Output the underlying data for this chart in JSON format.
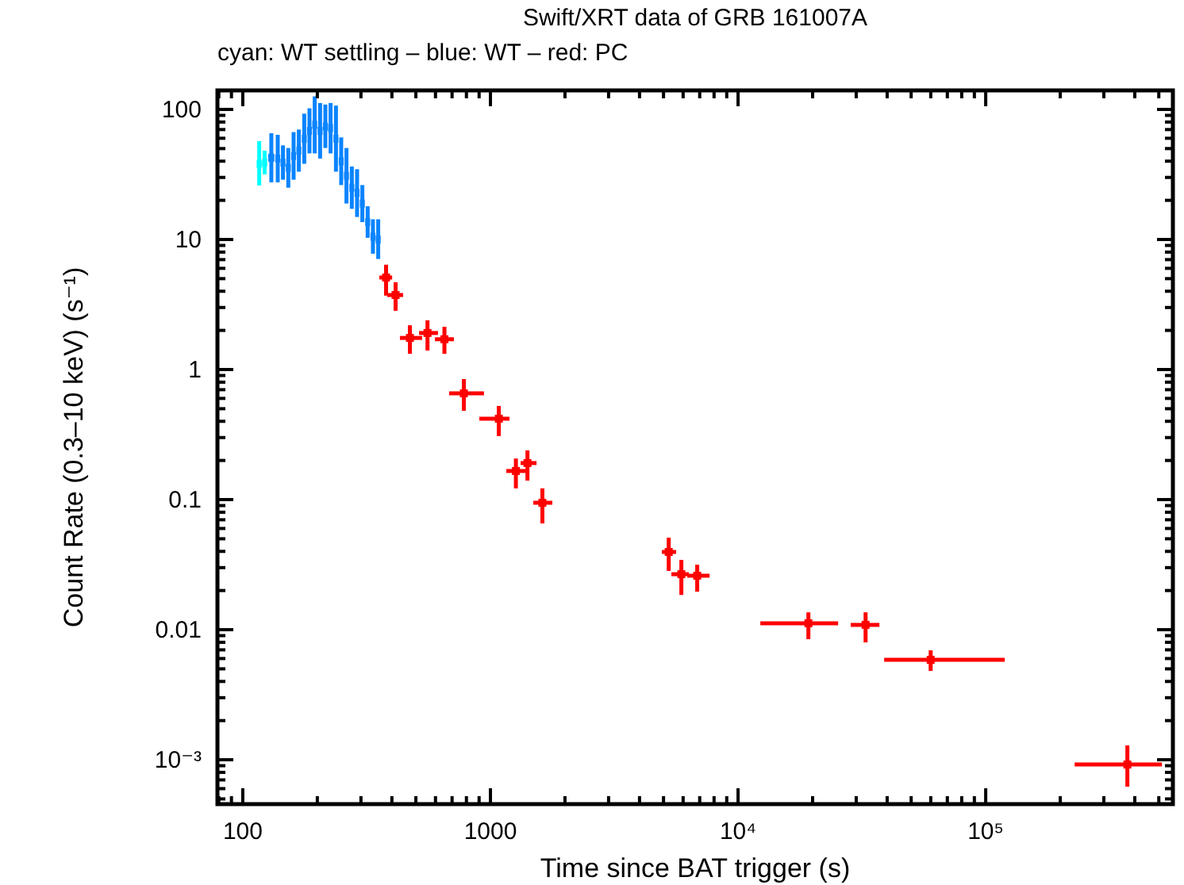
{
  "chart_data": {
    "type": "scatter",
    "title": "Swift/XRT data of GRB 161007A",
    "subtitle": "cyan: WT settling – blue: WT – red: PC",
    "xlabel": "Time since BAT trigger (s)",
    "ylabel": "Count Rate (0.3–10 keV) (s⁻¹)",
    "log": "xy",
    "grid": false,
    "xlim": [
      79,
      570000
    ],
    "ylim": [
      0.000456,
      140
    ],
    "xticks": [
      {
        "value": 80,
        "label": null
      },
      {
        "value": 90,
        "label": null
      },
      100,
      {
        "value": 200,
        "label": null
      },
      {
        "value": 300,
        "label": null
      },
      {
        "value": 400,
        "label": null
      },
      {
        "value": 500,
        "label": null
      },
      {
        "value": 600,
        "label": null
      },
      {
        "value": 700,
        "label": null
      },
      {
        "value": 800,
        "label": null
      },
      {
        "value": 900,
        "label": null
      },
      1000,
      {
        "value": 2000,
        "label": null
      },
      {
        "value": 3000,
        "label": null
      },
      {
        "value": 4000,
        "label": null
      },
      {
        "value": 5000,
        "label": null
      },
      {
        "value": 6000,
        "label": null
      },
      {
        "value": 7000,
        "label": null
      },
      {
        "value": 8000,
        "label": null
      },
      {
        "value": 9000,
        "label": null
      },
      {
        "value": 10000,
        "label": "10⁴"
      },
      {
        "value": 20000,
        "label": null
      },
      {
        "value": 30000,
        "label": null
      },
      {
        "value": 40000,
        "label": null
      },
      {
        "value": 50000,
        "label": null
      },
      {
        "value": 60000,
        "label": null
      },
      {
        "value": 70000,
        "label": null
      },
      {
        "value": 80000,
        "label": null
      },
      {
        "value": 90000,
        "label": null
      },
      {
        "value": 100000,
        "label": "10⁵"
      },
      {
        "value": 200000,
        "label": null
      },
      {
        "value": 300000,
        "label": null
      },
      {
        "value": 400000,
        "label": null
      },
      {
        "value": 500000,
        "label": null
      }
    ],
    "yticks": [
      {
        "value": 0.0005,
        "label": null
      },
      {
        "value": 0.0006,
        "label": null
      },
      {
        "value": 0.0007,
        "label": null
      },
      {
        "value": 0.0008,
        "label": null
      },
      {
        "value": 0.0009,
        "label": null
      },
      {
        "value": 0.001,
        "label": "10⁻³"
      },
      {
        "value": 0.002,
        "label": null
      },
      {
        "value": 0.003,
        "label": null
      },
      {
        "value": 0.004,
        "label": null
      },
      {
        "value": 0.005,
        "label": null
      },
      {
        "value": 0.006,
        "label": null
      },
      {
        "value": 0.007,
        "label": null
      },
      {
        "value": 0.008,
        "label": null
      },
      {
        "value": 0.009,
        "label": null
      },
      0.01,
      {
        "value": 0.02,
        "label": null
      },
      {
        "value": 0.03,
        "label": null
      },
      {
        "value": 0.04,
        "label": null
      },
      {
        "value": 0.05,
        "label": null
      },
      {
        "value": 0.06,
        "label": null
      },
      {
        "value": 0.07,
        "label": null
      },
      {
        "value": 0.08,
        "label": null
      },
      {
        "value": 0.09,
        "label": null
      },
      0.1,
      {
        "value": 0.2,
        "label": null
      },
      {
        "value": 0.3,
        "label": null
      },
      {
        "value": 0.4,
        "label": null
      },
      {
        "value": 0.5,
        "label": null
      },
      {
        "value": 0.6,
        "label": null
      },
      {
        "value": 0.7,
        "label": null
      },
      {
        "value": 0.8,
        "label": null
      },
      {
        "value": 0.9,
        "label": null
      },
      1,
      {
        "value": 2,
        "label": null
      },
      {
        "value": 3,
        "label": null
      },
      {
        "value": 4,
        "label": null
      },
      {
        "value": 5,
        "label": null
      },
      {
        "value": 6,
        "label": null
      },
      {
        "value": 7,
        "label": null
      },
      {
        "value": 8,
        "label": null
      },
      {
        "value": 9,
        "label": null
      },
      10,
      {
        "value": 20,
        "label": null
      },
      {
        "value": 30,
        "label": null
      },
      {
        "value": 40,
        "label": null
      },
      {
        "value": 50,
        "label": null
      },
      {
        "value": 60,
        "label": null
      },
      {
        "value": 70,
        "label": null
      },
      {
        "value": 80,
        "label": null
      },
      {
        "value": 90,
        "label": null
      },
      100
    ],
    "series": [
      {
        "color": "#00ffff",
        "x": [
          116.5,
          122.5
        ],
        "values": [
          38,
          39
        ],
        "errors": [
          [
            26,
            57
          ],
          [
            31.6,
            48.2
          ]
        ]
      },
      {
        "color": "#0a84ff",
        "x": [
          130.4,
          138.4,
          145.3,
          152.7,
          160.4,
          168.4,
          177.1,
          185.9,
          195.2,
          205.2,
          215.5,
          226.2,
          237.8,
          249.7,
          262.2,
          275.6,
          289.4,
          303.9,
          319.4,
          335.4,
          352.2
        ],
        "values": [
          42.5,
          41.9,
          39,
          35.6,
          43.9,
          48.2,
          59.5,
          68.4,
          76.2,
          68.4,
          74.1,
          71.8,
          59.5,
          39.9,
          30.9,
          25,
          22.8,
          18.9,
          13.6,
          10.5,
          10
        ],
        "errors": [
          [
            27.5,
            65.6
          ],
          [
            27.5,
            63.8
          ],
          [
            28.8,
            52.9
          ],
          [
            25,
            50.5
          ],
          [
            28.8,
            66.9
          ],
          [
            33.2,
            70
          ],
          [
            38.2,
            92.7
          ],
          [
            45.9,
            102
          ],
          [
            45.9,
            126
          ],
          [
            41.9,
            112
          ],
          [
            50.5,
            109
          ],
          [
            45.9,
            112
          ],
          [
            33.2,
            107
          ],
          [
            26.2,
            60.9
          ],
          [
            18.9,
            50.5
          ],
          [
            17.2,
            36.4
          ],
          [
            14.9,
            34.7
          ],
          [
            13.6,
            26.2
          ],
          [
            10.3,
            18
          ],
          [
            7.77,
            14.3
          ],
          [
            7.08,
            14.3
          ]
        ]
      },
      {
        "color": "#ff0000",
        "x": [
          379,
          414,
          473,
          557,
          652,
          781,
          1081,
          1267,
          1411,
          1621,
          5248,
          5902,
          6839,
          19230,
          32730,
          59950,
          373300
        ],
        "values": [
          5.1,
          3.74,
          1.75,
          1.91,
          1.71,
          0.656,
          0.419,
          0.166,
          0.191,
          0.0946,
          0.0396,
          0.0267,
          0.026,
          0.0112,
          0.0109,
          0.00586,
          0.000919
        ],
        "errors": [
          [
            3.7,
            6.4
          ],
          [
            2.83,
            4.69
          ],
          [
            1.32,
            2.19
          ],
          [
            1.4,
            2.39
          ],
          [
            1.32,
            2.13
          ],
          [
            0.482,
            0.845
          ],
          [
            0.308,
            0.525
          ],
          [
            0.122,
            0.207
          ],
          [
            0.14,
            0.239
          ],
          [
            0.0656,
            0.122
          ],
          [
            0.0283,
            0.051
          ],
          [
            0.0185,
            0.0344
          ],
          [
            0.0196,
            0.0316
          ],
          [
            0.00845,
            0.0136
          ],
          [
            0.00798,
            0.0136
          ],
          [
            0.00482,
            0.00694
          ],
          [
            0.000621,
            0.00129
          ]
        ],
        "xerrors": [
          [
            356,
            401
          ],
          [
            383,
            444
          ],
          [
            431,
            530
          ],
          [
            515,
            614
          ],
          [
            597,
            712
          ],
          [
            681,
            942
          ],
          [
            902,
            1194
          ],
          [
            1159,
            1425
          ],
          [
            1324,
            1535
          ],
          [
            1489,
            1778
          ],
          [
            4925,
            5623
          ],
          [
            5380,
            6327
          ],
          [
            6237,
            7674
          ],
          [
            12300,
            25350
          ],
          [
            28510,
            37220
          ],
          [
            38900,
            119400
          ],
          [
            228600,
            515000
          ]
        ]
      }
    ]
  }
}
